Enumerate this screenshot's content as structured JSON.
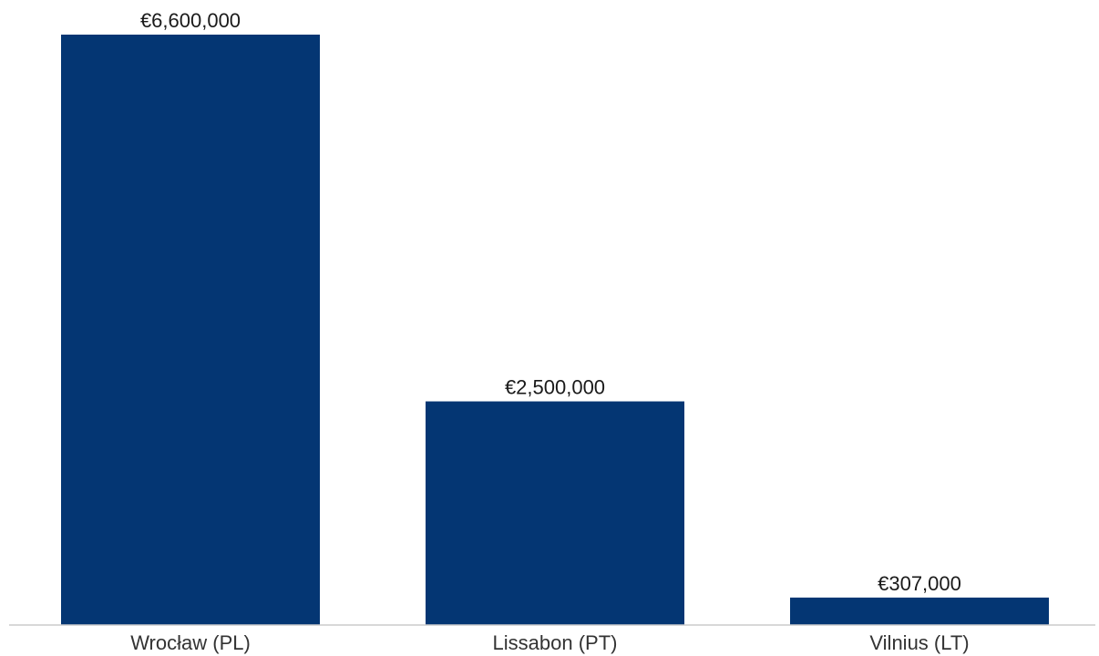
{
  "chart_data": {
    "type": "bar",
    "categories": [
      "Wrocław (PL)",
      "Lissabon (PT)",
      "Vilnius (LT)"
    ],
    "values": [
      6600000,
      2500000,
      307000
    ],
    "value_labels": [
      "€6,600,000",
      "€2,500,000",
      "€307,000"
    ],
    "title": "",
    "xlabel": "",
    "ylabel": "",
    "ylim": [
      0,
      6600000
    ],
    "grid": false,
    "legend": "none",
    "colors": {
      "bar": "#043673",
      "axis": "#cccccc",
      "text": "#1a1a1a"
    }
  }
}
